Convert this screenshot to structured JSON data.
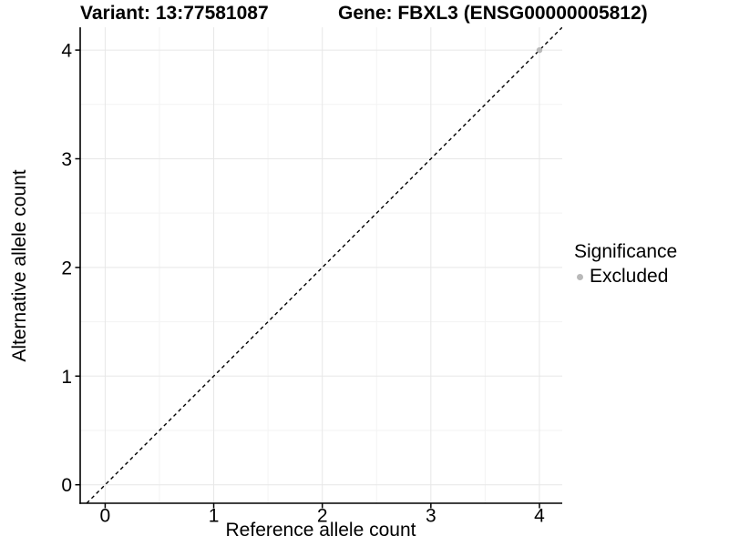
{
  "titles": {
    "variant": "Variant: 13:77581087",
    "gene": "Gene: FBXL3 (ENSG00000005812)"
  },
  "legend": {
    "title": "Significance",
    "items": [
      {
        "label": "Excluded",
        "color": "#b9b9b9"
      }
    ]
  },
  "chart_data": {
    "type": "scatter",
    "xlabel": "Reference allele count",
    "ylabel": "Alternative allele count",
    "xlim": [
      -0.23,
      4.21
    ],
    "ylim": [
      -0.17,
      4.21
    ],
    "x_ticks": [
      0,
      1,
      2,
      3,
      4
    ],
    "y_ticks": [
      0,
      1,
      2,
      3,
      4
    ],
    "x_minor_ticks": [
      0.5,
      1.5,
      2.5,
      3.5
    ],
    "y_minor_ticks": [
      0.5,
      1.5,
      2.5,
      3.5
    ],
    "grid": true,
    "legend_position": "right",
    "series": [
      {
        "name": "Excluded",
        "color": "#b9b9b9",
        "marker": "circle",
        "points": [
          [
            4,
            4
          ]
        ]
      }
    ],
    "reference_line": {
      "kind": "identity",
      "slope": 1,
      "intercept": 0,
      "linestyle": "dashed",
      "color": "#000000"
    }
  },
  "style": {
    "background": "#ffffff",
    "grid_major_color": "#e7e7e7",
    "grid_minor_color": "#f3f3f3",
    "axis_color": "#000000",
    "text_color": "#000000"
  }
}
